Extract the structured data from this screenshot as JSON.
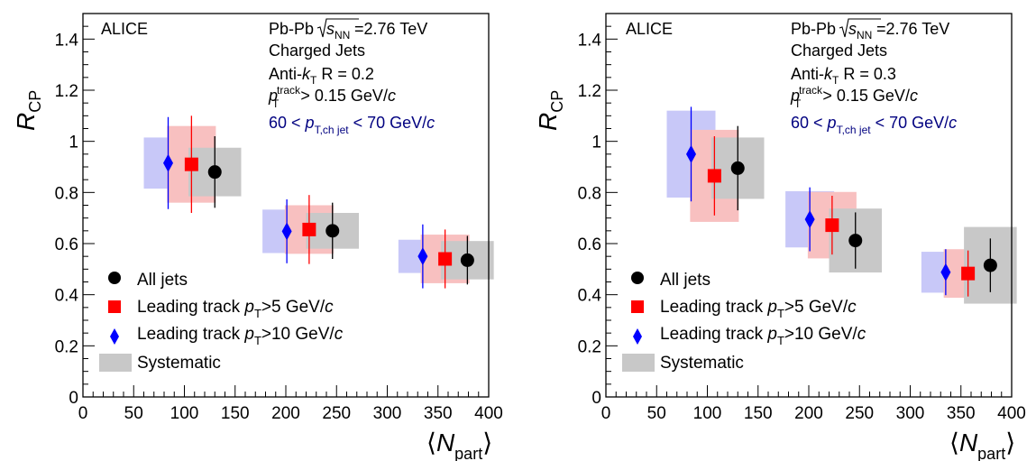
{
  "figure": {
    "experiment": "ALICE",
    "legend": {
      "all_jets": "All jets",
      "leading_track_prefix": "Leading track",
      "lt5_cut": ">5 GeV/",
      "lt10_cut": ">10 GeV/",
      "systematic": "Systematic"
    },
    "colors": {
      "all_jets": "#000000",
      "lt5": "#ff0000",
      "lt10": "#0000ff",
      "sys_all": "#c8c8c8",
      "sys_lt5": "#f8c0c0",
      "sys_lt10": "#c8c8f8",
      "selection_text": "#000080"
    }
  },
  "chart_data": [
    {
      "type": "scatter",
      "xlabel": "⟨N_part⟩",
      "ylabel": "R_CP",
      "xlim": [
        0,
        400
      ],
      "ylim": [
        0,
        1.5
      ],
      "xticks": [
        "0",
        "50",
        "100",
        "150",
        "200",
        "250",
        "300",
        "350",
        "400"
      ],
      "yticks": [
        "0",
        "0.2",
        "0.4",
        "0.6",
        "0.8",
        "1",
        "1.2",
        "1.4"
      ],
      "annotations": {
        "system": "Pb-Pb",
        "energy": "=2.76 TeV",
        "jets": "Charged Jets",
        "algorithm": "Anti-",
        "radius": "R = 0.2",
        "track_cut": "> 0.15 GeV/",
        "pt_range_low": "60 <",
        "pt_range_high": "< 70 GeV/"
      },
      "series": [
        {
          "name": "All jets",
          "marker": "circle",
          "points": [
            {
              "x": 130,
              "y": 0.88,
              "err": 0.14,
              "sys": 0.095
            },
            {
              "x": 246,
              "y": 0.65,
              "err": 0.11,
              "sys": 0.07
            },
            {
              "x": 379,
              "y": 0.535,
              "err": 0.095,
              "sys": 0.075
            }
          ]
        },
        {
          "name": "Leading track pT>5 GeV/c",
          "marker": "square",
          "points": [
            {
              "x": 107,
              "y": 0.91,
              "err": 0.19,
              "sys": 0.15
            },
            {
              "x": 223,
              "y": 0.655,
              "err": 0.135,
              "sys": 0.095
            },
            {
              "x": 357,
              "y": 0.54,
              "err": 0.115,
              "sys": 0.095
            }
          ]
        },
        {
          "name": "Leading track pT>10 GeV/c",
          "marker": "diamond",
          "points": [
            {
              "x": 84,
              "y": 0.915,
              "err": 0.18,
              "sys": 0.1
            },
            {
              "x": 201,
              "y": 0.648,
              "err": 0.125,
              "sys": 0.085
            },
            {
              "x": 335,
              "y": 0.55,
              "err": 0.125,
              "sys": 0.065
            }
          ]
        }
      ]
    },
    {
      "type": "scatter",
      "xlabel": "⟨N_part⟩",
      "ylabel": "R_CP",
      "xlim": [
        0,
        400
      ],
      "ylim": [
        0,
        1.5
      ],
      "xticks": [
        "0",
        "50",
        "100",
        "150",
        "200",
        "250",
        "300",
        "350",
        "400"
      ],
      "yticks": [
        "0",
        "0.2",
        "0.4",
        "0.6",
        "0.8",
        "1",
        "1.2",
        "1.4"
      ],
      "annotations": {
        "system": "Pb-Pb",
        "energy": "=2.76 TeV",
        "jets": "Charged Jets",
        "algorithm": "Anti-",
        "radius": "R = 0.3",
        "track_cut": "> 0.15 GeV/",
        "pt_range_low": "60 <",
        "pt_range_high": "< 70 GeV/"
      },
      "series": [
        {
          "name": "All jets",
          "marker": "circle",
          "points": [
            {
              "x": 130,
              "y": 0.895,
              "err": 0.165,
              "sys": 0.12
            },
            {
              "x": 246,
              "y": 0.612,
              "err": 0.11,
              "sys": 0.125
            },
            {
              "x": 379,
              "y": 0.515,
              "err": 0.105,
              "sys": 0.15
            }
          ]
        },
        {
          "name": "Leading track pT>5 GeV/c",
          "marker": "square",
          "points": [
            {
              "x": 107,
              "y": 0.865,
              "err": 0.155,
              "sys": 0.18
            },
            {
              "x": 223,
              "y": 0.672,
              "err": 0.115,
              "sys": 0.13
            },
            {
              "x": 357,
              "y": 0.483,
              "err": 0.09,
              "sys": 0.095
            }
          ]
        },
        {
          "name": "Leading track pT>10 GeV/c",
          "marker": "diamond",
          "points": [
            {
              "x": 84,
              "y": 0.95,
              "err": 0.185,
              "sys": 0.17
            },
            {
              "x": 201,
              "y": 0.695,
              "err": 0.125,
              "sys": 0.11
            },
            {
              "x": 335,
              "y": 0.488,
              "err": 0.09,
              "sys": 0.08
            }
          ]
        }
      ]
    }
  ]
}
